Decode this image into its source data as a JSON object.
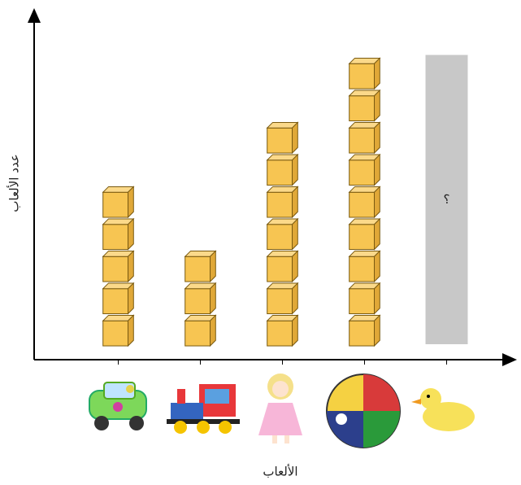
{
  "chart_data": {
    "type": "pictograph",
    "x_label": "الألعاب",
    "y_label": "عدد الألعاب",
    "categories": [
      null,
      null,
      null,
      null,
      null
    ],
    "values": [
      5,
      3,
      7,
      9,
      null
    ],
    "value_labels": [
      null,
      null,
      null,
      null,
      "؟"
    ],
    "ylim": [
      0,
      10
    ],
    "color": "#f7c552",
    "placeholder_color": "#c8c8c8"
  }
}
